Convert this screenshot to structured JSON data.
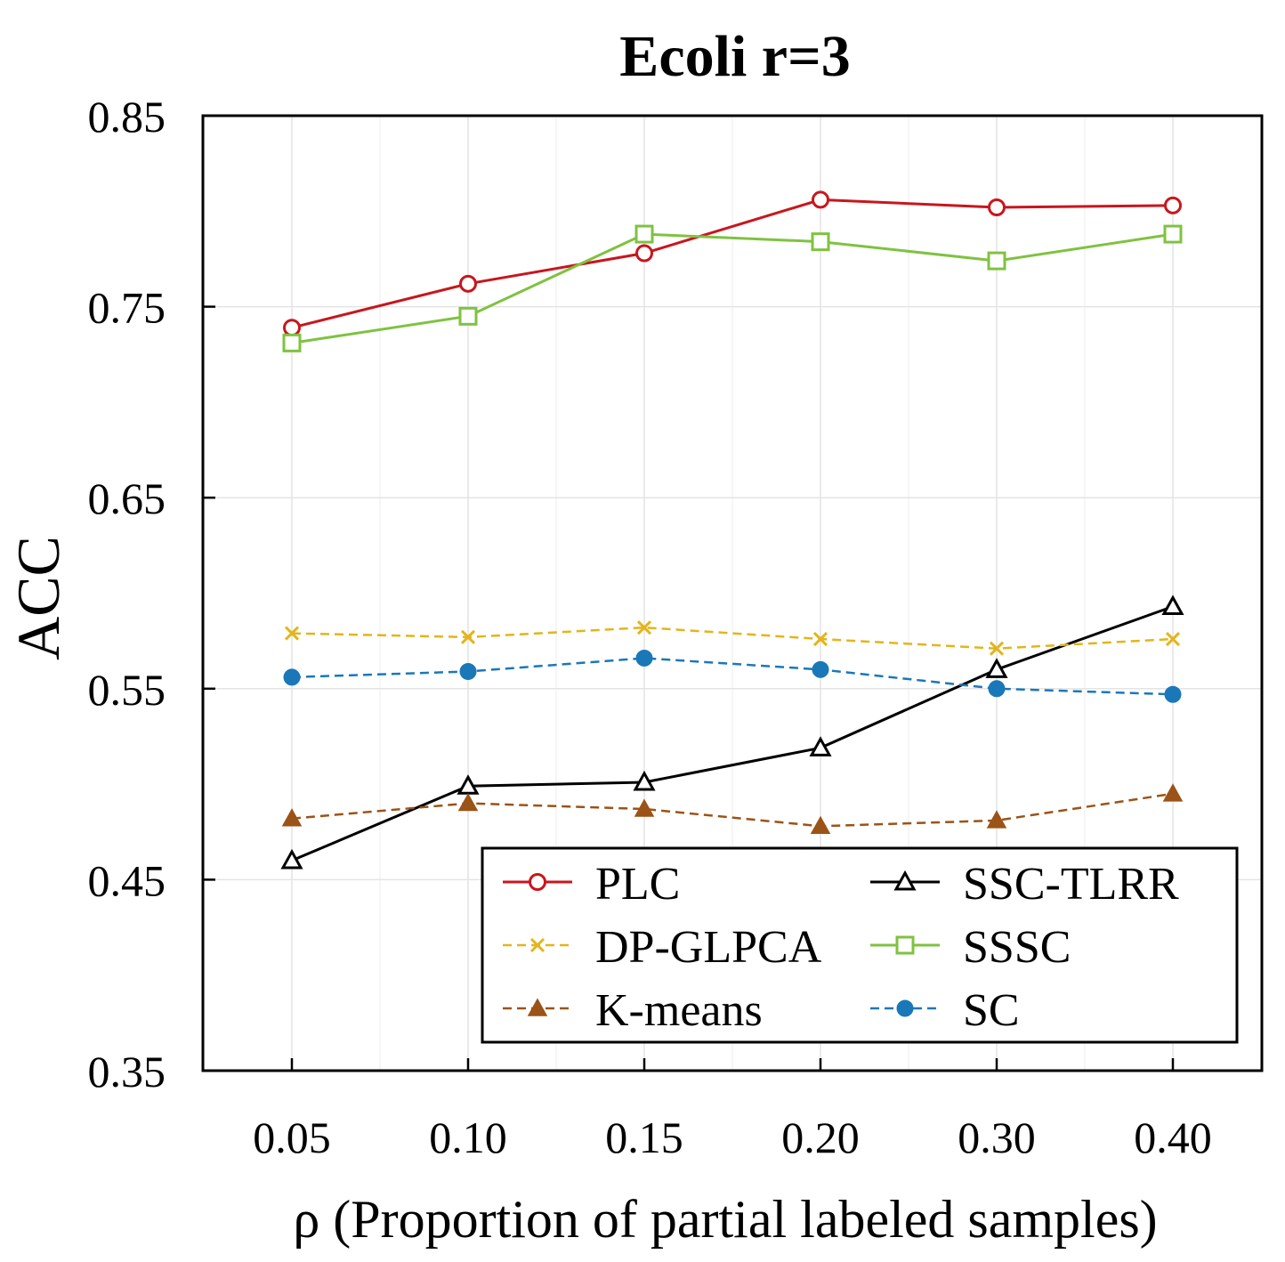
{
  "chart_data": {
    "type": "line",
    "title": "Ecoli r=3",
    "xlabel": "ρ (Proportion of partial labeled samples)",
    "ylabel": "ACC",
    "categories": [
      "0.05",
      "0.10",
      "0.15",
      "0.20",
      "0.30",
      "0.40"
    ],
    "ylim": [
      0.35,
      0.85
    ],
    "yticks": [
      "0.35",
      "0.45",
      "0.55",
      "0.65",
      "0.75",
      "0.85"
    ],
    "ytick_values": [
      0.35,
      0.45,
      0.55,
      0.65,
      0.75,
      0.85
    ],
    "grid": true,
    "legend_position": "bottom-right",
    "series": [
      {
        "name": "PLC",
        "values": [
          0.739,
          0.762,
          0.778,
          0.806,
          0.802,
          0.803
        ],
        "color": "#c8161d",
        "dash": false,
        "marker": "circle-open"
      },
      {
        "name": "SSC-TLRR",
        "values": [
          0.46,
          0.499,
          0.501,
          0.519,
          0.56,
          0.593
        ],
        "color": "#000000",
        "dash": false,
        "marker": "triangle-open"
      },
      {
        "name": "DP-GLPCA",
        "values": [
          0.579,
          0.577,
          0.582,
          0.576,
          0.571,
          0.576
        ],
        "color": "#e3b51a",
        "dash": true,
        "marker": "x"
      },
      {
        "name": "SSSC",
        "values": [
          0.731,
          0.745,
          0.788,
          0.784,
          0.774,
          0.788
        ],
        "color": "#7fc241",
        "dash": false,
        "marker": "square-open"
      },
      {
        "name": "K-means",
        "values": [
          0.482,
          0.49,
          0.487,
          0.478,
          0.481,
          0.495
        ],
        "color": "#9b5317",
        "dash": true,
        "marker": "triangle-filled"
      },
      {
        "name": "SC",
        "values": [
          0.556,
          0.559,
          0.566,
          0.56,
          0.55,
          0.547
        ],
        "color": "#1b78b8",
        "dash": true,
        "marker": "circle-filled"
      }
    ]
  }
}
